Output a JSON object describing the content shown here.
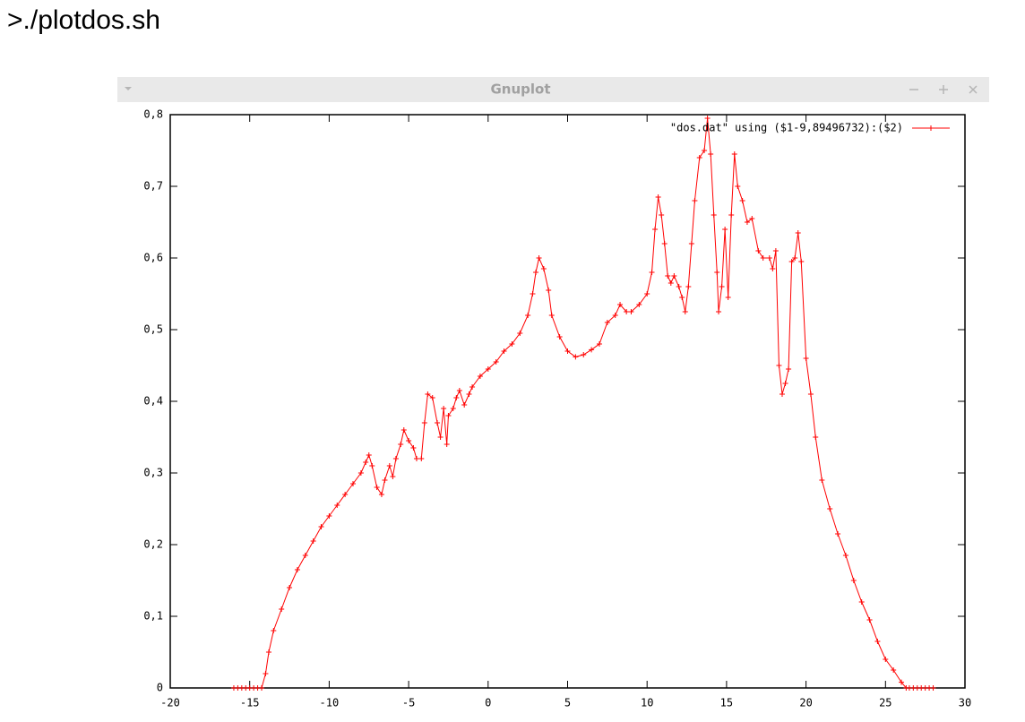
{
  "command": ">./plotdos.sh",
  "window": {
    "title": "Gnuplot"
  },
  "chart_data": {
    "type": "line",
    "series": [
      {
        "name": "\"dos.dat\" using ($1-9,89496732):($2)",
        "color": "#ff0000",
        "x": [
          -16,
          -15.75,
          -15.5,
          -15.25,
          -15,
          -14.75,
          -14.5,
          -14.25,
          -14,
          -13.8,
          -13.5,
          -13,
          -12.5,
          -12,
          -11.5,
          -11,
          -10.5,
          -10,
          -9.5,
          -9,
          -8.5,
          -8,
          -7.7,
          -7.5,
          -7.3,
          -7,
          -6.7,
          -6.5,
          -6.2,
          -6,
          -5.8,
          -5.5,
          -5.3,
          -5,
          -4.7,
          -4.5,
          -4.2,
          -4,
          -3.8,
          -3.5,
          -3.2,
          -3,
          -2.8,
          -2.6,
          -2.5,
          -2.2,
          -2,
          -1.8,
          -1.5,
          -1.2,
          -1,
          -0.5,
          0,
          0.5,
          1,
          1.5,
          2,
          2.5,
          2.8,
          3,
          3.2,
          3.5,
          3.8,
          4,
          4.5,
          5,
          5.5,
          6,
          6.5,
          7,
          7.5,
          8,
          8.3,
          8.7,
          9,
          9.5,
          10,
          10.3,
          10.5,
          10.7,
          10.9,
          11.1,
          11.3,
          11.5,
          11.7,
          12,
          12.2,
          12.4,
          12.6,
          12.8,
          13,
          13.3,
          13.6,
          13.8,
          14,
          14.2,
          14.4,
          14.5,
          14.7,
          14.9,
          15.1,
          15.3,
          15.5,
          15.7,
          16,
          16.3,
          16.6,
          17,
          17.3,
          17.7,
          17.9,
          18.1,
          18.3,
          18.5,
          18.7,
          18.9,
          19.1,
          19.3,
          19.5,
          19.7,
          20,
          20.3,
          20.6,
          21,
          21.5,
          22,
          22.5,
          23,
          23.5,
          24,
          24.5,
          25,
          25.5,
          26,
          26.3,
          26.5,
          26.75,
          27,
          27.25,
          27.5,
          27.75,
          28
        ],
        "values": [
          0,
          0,
          0,
          0,
          0,
          0,
          0,
          0,
          0.02,
          0.05,
          0.08,
          0.11,
          0.14,
          0.165,
          0.185,
          0.205,
          0.225,
          0.24,
          0.255,
          0.27,
          0.285,
          0.3,
          0.315,
          0.325,
          0.31,
          0.28,
          0.27,
          0.29,
          0.31,
          0.295,
          0.32,
          0.34,
          0.36,
          0.345,
          0.335,
          0.32,
          0.32,
          0.37,
          0.41,
          0.405,
          0.37,
          0.35,
          0.39,
          0.34,
          0.38,
          0.39,
          0.405,
          0.415,
          0.395,
          0.41,
          0.42,
          0.435,
          0.445,
          0.455,
          0.47,
          0.48,
          0.495,
          0.52,
          0.55,
          0.58,
          0.6,
          0.585,
          0.555,
          0.52,
          0.49,
          0.47,
          0.462,
          0.465,
          0.472,
          0.48,
          0.51,
          0.52,
          0.535,
          0.525,
          0.525,
          0.535,
          0.55,
          0.58,
          0.64,
          0.685,
          0.66,
          0.62,
          0.575,
          0.565,
          0.575,
          0.56,
          0.545,
          0.525,
          0.56,
          0.62,
          0.68,
          0.74,
          0.75,
          0.795,
          0.745,
          0.66,
          0.58,
          0.525,
          0.56,
          0.64,
          0.545,
          0.66,
          0.745,
          0.7,
          0.68,
          0.65,
          0.655,
          0.61,
          0.6,
          0.6,
          0.585,
          0.61,
          0.45,
          0.41,
          0.425,
          0.445,
          0.595,
          0.6,
          0.635,
          0.595,
          0.46,
          0.41,
          0.35,
          0.29,
          0.25,
          0.215,
          0.185,
          0.15,
          0.12,
          0.095,
          0.065,
          0.04,
          0.025,
          0.008,
          0,
          0,
          0,
          0,
          0,
          0,
          0,
          0
        ]
      }
    ],
    "xlim": [
      -20,
      30
    ],
    "xticks": [
      -20,
      -15,
      -10,
      -5,
      0,
      5,
      10,
      15,
      20,
      25,
      30
    ],
    "ylim": [
      0,
      0.8
    ],
    "yticks": [
      0,
      {
        "value": 0.1,
        "label": "0,1"
      },
      {
        "value": 0.2,
        "label": "0,2"
      },
      {
        "value": 0.3,
        "label": "0,3"
      },
      {
        "value": 0.4,
        "label": "0,4"
      },
      {
        "value": 0.5,
        "label": "0,5"
      },
      {
        "value": 0.6,
        "label": "0,6"
      },
      {
        "value": 0.7,
        "label": "0,7"
      },
      {
        "value": 0.8,
        "label": "0,8"
      }
    ],
    "legend": "top-right"
  }
}
